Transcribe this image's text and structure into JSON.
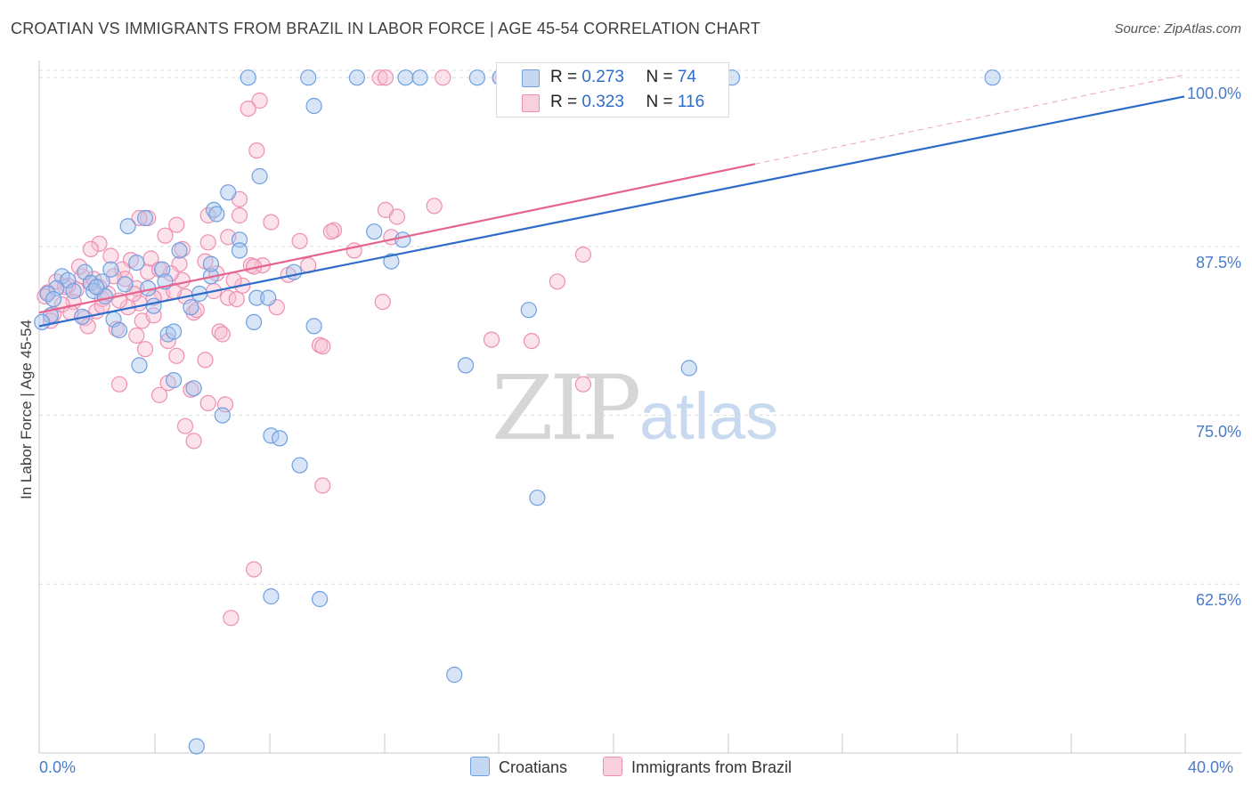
{
  "header": {
    "title": "CROATIAN VS IMMIGRANTS FROM BRAZIL IN LABOR FORCE | AGE 45-54 CORRELATION CHART",
    "source": "Source: ZipAtlas.com"
  },
  "watermark": {
    "zip": "ZIP",
    "atlas": "atlas"
  },
  "legend": {
    "series1": {
      "r_label": "R = ",
      "r_value": "0.273",
      "n_label": "N = ",
      "n_value": "74"
    },
    "series2": {
      "r_label": "R = ",
      "r_value": "0.323",
      "n_label": "N = ",
      "n_value": "116"
    }
  },
  "colors": {
    "blue_fill": "#a9c6ee",
    "blue_stroke": "#6f9fe0",
    "blue_line": "#2d6cc9",
    "pink_fill": "#f7bfd2",
    "pink_stroke": "#ee8fb1",
    "pink_line": "#e5638f",
    "grid": "#dadce0",
    "tick_text": "#4a7bc8"
  },
  "chart_data": {
    "type": "scatter",
    "title": "CROATIAN VS IMMIGRANTS FROM BRAZIL IN LABOR FORCE | AGE 45-54 CORRELATION CHART",
    "xlabel": "",
    "ylabel": "In Labor Force | Age 45-54",
    "xlim": [
      0,
      40
    ],
    "ylim": [
      50,
      101
    ],
    "x_tick_labels": [
      "0.0%",
      "40.0%"
    ],
    "y_ticks": [
      62.5,
      75.0,
      87.5,
      100.0
    ],
    "y_tick_labels": [
      "62.5%",
      "75.0%",
      "87.5%",
      "100.0%"
    ],
    "legend_bottom": [
      "Croatians",
      "Immigrants from Brazil"
    ],
    "series": [
      {
        "name": "Croatians",
        "r": 0.273,
        "n": 74,
        "trend": {
          "x0": 0,
          "y0": 81.6,
          "x1": 40,
          "y1": 98.6
        },
        "points": [
          [
            7.3,
            100
          ],
          [
            9.4,
            100
          ],
          [
            11.1,
            100
          ],
          [
            12.8,
            100
          ],
          [
            13.3,
            100
          ],
          [
            15.3,
            100
          ],
          [
            16.1,
            100
          ],
          [
            18.6,
            100
          ],
          [
            24.2,
            100
          ],
          [
            33.3,
            100
          ],
          [
            23.3,
            98.2
          ],
          [
            9.6,
            97.9
          ],
          [
            7.7,
            92.7
          ],
          [
            6.6,
            91.5
          ],
          [
            6.1,
            90.2
          ],
          [
            3.7,
            89.6
          ],
          [
            6.2,
            89.9
          ],
          [
            3.1,
            89.0
          ],
          [
            11.7,
            88.6
          ],
          [
            12.7,
            88.0
          ],
          [
            7.0,
            88.0
          ],
          [
            4.9,
            87.2
          ],
          [
            12.3,
            86.4
          ],
          [
            3.4,
            86.3
          ],
          [
            4.3,
            85.8
          ],
          [
            2.5,
            85.8
          ],
          [
            8.9,
            85.6
          ],
          [
            1.6,
            85.6
          ],
          [
            0.8,
            85.3
          ],
          [
            6.0,
            85.3
          ],
          [
            1.0,
            85.0
          ],
          [
            4.4,
            84.9
          ],
          [
            2.2,
            84.9
          ],
          [
            1.8,
            84.8
          ],
          [
            3.8,
            84.4
          ],
          [
            0.6,
            84.4
          ],
          [
            1.2,
            84.2
          ],
          [
            1.9,
            84.2
          ],
          [
            0.3,
            84.0
          ],
          [
            5.6,
            84.0
          ],
          [
            2.3,
            83.8
          ],
          [
            7.6,
            83.7
          ],
          [
            8.0,
            83.7
          ],
          [
            4.0,
            83.1
          ],
          [
            5.3,
            83.0
          ],
          [
            17.1,
            82.8
          ],
          [
            0.4,
            82.4
          ],
          [
            1.5,
            82.3
          ],
          [
            2.6,
            82.1
          ],
          [
            7.5,
            81.9
          ],
          [
            0.1,
            81.9
          ],
          [
            9.6,
            81.6
          ],
          [
            2.8,
            81.3
          ],
          [
            4.5,
            81.0
          ],
          [
            4.7,
            81.2
          ],
          [
            14.9,
            78.7
          ],
          [
            3.5,
            78.7
          ],
          [
            22.7,
            78.5
          ],
          [
            4.7,
            77.6
          ],
          [
            5.4,
            77.0
          ],
          [
            6.4,
            75.0
          ],
          [
            8.1,
            73.5
          ],
          [
            8.4,
            73.3
          ],
          [
            9.1,
            71.3
          ],
          [
            17.4,
            68.9
          ],
          [
            8.1,
            61.6
          ],
          [
            9.8,
            61.4
          ],
          [
            14.5,
            55.8
          ],
          [
            5.5,
            50.5
          ],
          [
            7.0,
            87.2
          ],
          [
            2.0,
            84.5
          ],
          [
            3.0,
            84.7
          ],
          [
            6.0,
            86.2
          ],
          [
            0.5,
            83.6
          ]
        ]
      },
      {
        "name": "Immigrants from Brazil",
        "r": 0.323,
        "n": 116,
        "trend": {
          "x0": 0,
          "y0": 82.6,
          "x1": 25,
          "y1": 93.6
        },
        "dashed_extension": {
          "x0": 25,
          "y0": 93.6,
          "x1": 40,
          "y1": 100.2
        },
        "points": [
          [
            11.9,
            100
          ],
          [
            12.1,
            100
          ],
          [
            14.1,
            100
          ],
          [
            16.1,
            100
          ],
          [
            16.3,
            100
          ],
          [
            21.1,
            100
          ],
          [
            7.7,
            98.3
          ],
          [
            7.3,
            97.7
          ],
          [
            7.6,
            94.6
          ],
          [
            7.0,
            91.0
          ],
          [
            12.1,
            90.2
          ],
          [
            13.8,
            90.5
          ],
          [
            12.5,
            89.7
          ],
          [
            3.8,
            89.6
          ],
          [
            3.5,
            89.6
          ],
          [
            7.0,
            89.8
          ],
          [
            4.8,
            89.1
          ],
          [
            8.1,
            89.3
          ],
          [
            5.9,
            89.8
          ],
          [
            4.4,
            88.3
          ],
          [
            10.3,
            88.7
          ],
          [
            6.6,
            88.2
          ],
          [
            9.1,
            87.9
          ],
          [
            2.1,
            87.7
          ],
          [
            5.9,
            87.8
          ],
          [
            7.8,
            86.1
          ],
          [
            11.0,
            87.2
          ],
          [
            1.8,
            87.3
          ],
          [
            2.5,
            86.8
          ],
          [
            3.2,
            86.5
          ],
          [
            7.4,
            86.1
          ],
          [
            19.0,
            86.9
          ],
          [
            4.9,
            86.2
          ],
          [
            2.9,
            85.8
          ],
          [
            3.8,
            85.6
          ],
          [
            6.2,
            85.5
          ],
          [
            1.5,
            85.3
          ],
          [
            5.0,
            85.0
          ],
          [
            1.8,
            84.8
          ],
          [
            0.6,
            84.9
          ],
          [
            2.1,
            84.5
          ],
          [
            3.4,
            84.4
          ],
          [
            6.1,
            84.2
          ],
          [
            4.3,
            84.0
          ],
          [
            1.3,
            84.3
          ],
          [
            0.3,
            84.1
          ],
          [
            5.1,
            83.8
          ],
          [
            4.0,
            83.7
          ],
          [
            6.6,
            83.7
          ],
          [
            2.2,
            83.6
          ],
          [
            1.2,
            83.4
          ],
          [
            12.0,
            83.4
          ],
          [
            3.5,
            83.3
          ],
          [
            8.3,
            83.0
          ],
          [
            2.0,
            82.7
          ],
          [
            5.4,
            82.6
          ],
          [
            0.5,
            82.5
          ],
          [
            1.6,
            82.2
          ],
          [
            3.6,
            82.0
          ],
          [
            6.3,
            81.2
          ],
          [
            1.7,
            81.6
          ],
          [
            2.7,
            81.4
          ],
          [
            3.4,
            80.9
          ],
          [
            4.5,
            80.5
          ],
          [
            6.4,
            81.0
          ],
          [
            3.7,
            79.9
          ],
          [
            9.8,
            80.2
          ],
          [
            9.9,
            80.1
          ],
          [
            17.2,
            80.5
          ],
          [
            4.8,
            79.4
          ],
          [
            5.8,
            79.1
          ],
          [
            4.5,
            77.4
          ],
          [
            2.8,
            77.3
          ],
          [
            19.0,
            77.3
          ],
          [
            5.3,
            76.9
          ],
          [
            4.2,
            76.5
          ],
          [
            5.9,
            75.9
          ],
          [
            6.5,
            75.8
          ],
          [
            5.1,
            74.2
          ],
          [
            5.4,
            73.1
          ],
          [
            9.9,
            69.8
          ],
          [
            7.5,
            63.6
          ],
          [
            6.7,
            60.0
          ],
          [
            15.8,
            80.6
          ],
          [
            18.1,
            84.9
          ],
          [
            12.3,
            88.2
          ],
          [
            8.7,
            85.4
          ],
          [
            10.2,
            88.6
          ],
          [
            3.0,
            85.1
          ],
          [
            4.7,
            84.2
          ],
          [
            1.0,
            84.6
          ],
          [
            2.6,
            85.3
          ],
          [
            5.8,
            86.4
          ],
          [
            7.1,
            84.6
          ],
          [
            3.1,
            83.0
          ],
          [
            0.8,
            83.2
          ],
          [
            2.4,
            84.0
          ],
          [
            4.0,
            82.4
          ],
          [
            6.9,
            83.6
          ],
          [
            1.9,
            85.1
          ],
          [
            0.4,
            82.0
          ],
          [
            9.4,
            86.1
          ],
          [
            3.9,
            86.6
          ],
          [
            4.6,
            85.5
          ],
          [
            2.2,
            83.1
          ],
          [
            0.9,
            84.5
          ],
          [
            5.5,
            82.8
          ],
          [
            6.8,
            85.0
          ],
          [
            3.3,
            84.0
          ],
          [
            1.4,
            86.0
          ],
          [
            2.8,
            83.5
          ],
          [
            0.2,
            83.8
          ],
          [
            4.2,
            85.8
          ],
          [
            5.0,
            87.3
          ],
          [
            7.5,
            86.0
          ],
          [
            1.1,
            82.6
          ]
        ]
      }
    ]
  }
}
